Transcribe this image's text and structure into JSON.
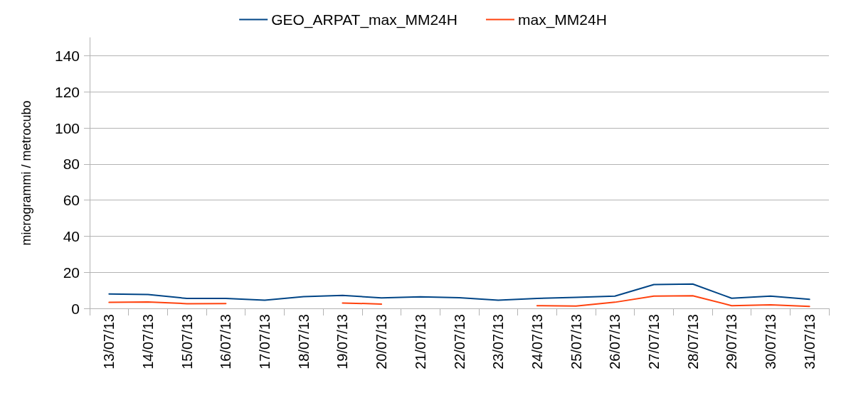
{
  "chart_data": {
    "type": "line",
    "ylabel": "microgrammi / metrocubo",
    "categories": [
      "13/07/13",
      "14/07/13",
      "15/07/13",
      "16/07/13",
      "17/07/13",
      "18/07/13",
      "19/07/13",
      "20/07/13",
      "21/07/13",
      "22/07/13",
      "23/07/13",
      "24/07/13",
      "25/07/13",
      "26/07/13",
      "27/07/13",
      "28/07/13",
      "29/07/13",
      "30/07/13",
      "31/07/13"
    ],
    "series": [
      {
        "name": "GEO_ARPAT_max_MM24H",
        "color": "#004586",
        "values": [
          8,
          7.7,
          5.5,
          5.5,
          4.5,
          6.5,
          7.2,
          5.8,
          6.4,
          5.9,
          4.5,
          5.5,
          6.1,
          6.8,
          13.2,
          13.5,
          5.6,
          6.8,
          5
        ]
      },
      {
        "name": "max_MM24H",
        "color": "#ff420e",
        "values": [
          3.3,
          3.5,
          2.6,
          2.7,
          null,
          null,
          3,
          2.4,
          null,
          null,
          null,
          1.5,
          1.3,
          3.4,
          6.8,
          7,
          1.5,
          2,
          1.1
        ]
      }
    ],
    "ylim": [
      0,
      150
    ],
    "yticks": [
      0,
      20,
      40,
      60,
      80,
      100,
      120,
      140
    ],
    "grid": "y",
    "legend": "top",
    "marker": "none",
    "line_style": "solid"
  }
}
